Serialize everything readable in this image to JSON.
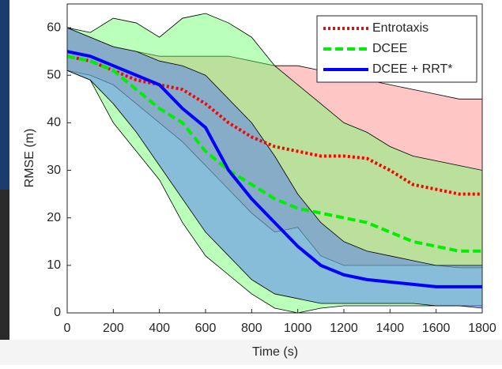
{
  "chart_data": {
    "type": "line",
    "xlabel": "Time (s)",
    "ylabel": "RMSE (m)",
    "x": [
      0,
      100,
      200,
      300,
      400,
      500,
      600,
      700,
      800,
      900,
      1000,
      1100,
      1200,
      1300,
      1400,
      1500,
      1600,
      1700,
      1800
    ],
    "xlim": [
      0,
      1800
    ],
    "ylim": [
      0,
      65
    ],
    "xticks": [
      0,
      200,
      400,
      600,
      800,
      1000,
      1200,
      1400,
      1600,
      1800
    ],
    "yticks": [
      0,
      10,
      20,
      30,
      40,
      50,
      60
    ],
    "legend": "upper right",
    "series": [
      {
        "name": "Entrotaxis",
        "color": "#ff0000",
        "band_color": "#ff8080",
        "style": "dotted",
        "values": [
          54,
          53,
          51,
          49,
          48,
          47,
          44,
          40,
          37,
          35,
          34,
          33,
          33,
          32.5,
          30,
          27,
          26,
          25,
          25
        ],
        "upper": [
          60,
          58,
          56,
          55,
          54,
          54,
          54,
          54,
          53,
          52,
          52,
          51,
          50,
          49,
          48,
          47,
          46,
          45,
          45
        ],
        "lower": [
          51,
          50,
          48,
          44,
          40,
          36,
          31,
          26,
          21,
          17,
          18,
          12,
          10,
          10,
          10,
          10,
          10,
          9.5,
          9.5
        ]
      },
      {
        "name": "DCEE",
        "color": "#00ee00",
        "band_color": "#66ff66",
        "style": "dashed",
        "values": [
          54,
          53,
          51,
          47,
          43,
          40,
          34,
          30,
          27,
          24,
          22,
          21,
          20,
          19,
          17,
          15,
          14,
          13,
          13
        ],
        "upper": [
          60,
          59,
          62,
          61,
          58,
          62,
          63,
          61,
          58,
          52,
          48,
          44,
          40,
          38,
          35,
          33,
          32,
          31,
          30
        ],
        "lower": [
          51,
          49,
          40,
          34,
          28,
          19,
          12,
          8,
          4,
          1,
          0,
          1,
          1.5,
          1.5,
          1.5,
          1.5,
          1.5,
          1.5,
          1.5
        ]
      },
      {
        "name": "DCEE + RRT*",
        "color": "#0000ff",
        "band_color": "#4a6cff",
        "style": "solid",
        "values": [
          55,
          54,
          52,
          50,
          48,
          43,
          39,
          30,
          24,
          19,
          14,
          10,
          8,
          7,
          6.5,
          6,
          5.5,
          5.5,
          5.5
        ],
        "upper": [
          60,
          58,
          56,
          55,
          53,
          52,
          50,
          45,
          40,
          33,
          25,
          19,
          15,
          13,
          12,
          11,
          10,
          10,
          10
        ],
        "lower": [
          51,
          49,
          44,
          38,
          31,
          24,
          17,
          12,
          7,
          4,
          3,
          2,
          2,
          2,
          2,
          2,
          1.5,
          1.5,
          1
        ]
      }
    ]
  }
}
